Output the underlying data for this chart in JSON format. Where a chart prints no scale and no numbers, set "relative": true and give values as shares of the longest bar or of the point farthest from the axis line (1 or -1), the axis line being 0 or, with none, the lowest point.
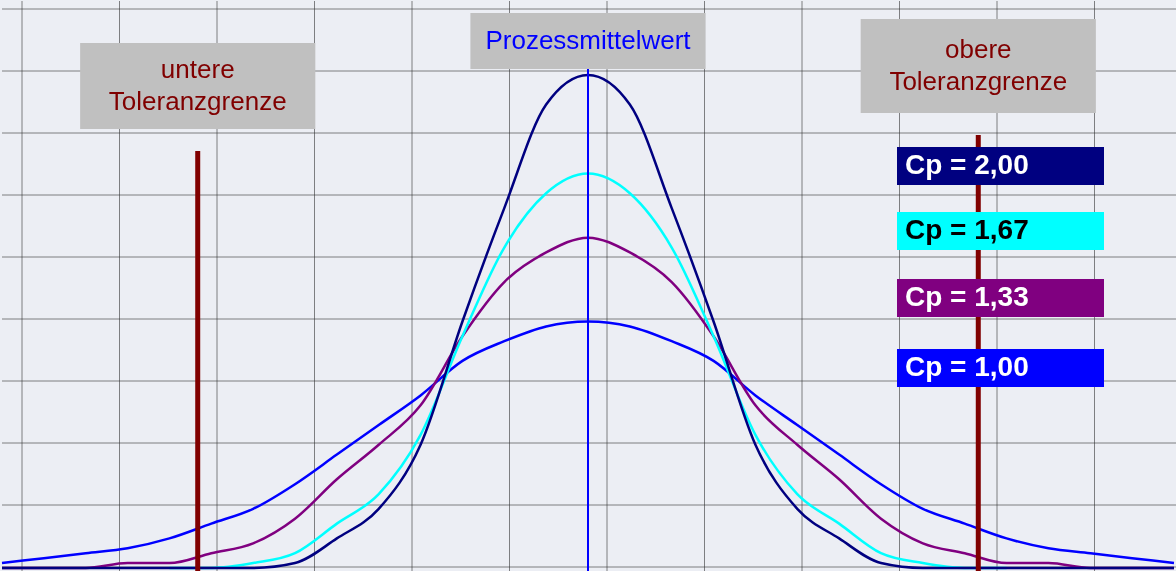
{
  "chart_data": {
    "type": "line",
    "relative": true,
    "line_style": "solid",
    "grid": true,
    "categories": [
      null,
      null,
      null,
      null,
      null,
      null,
      null,
      null,
      null,
      null,
      null,
      null,
      null,
      null,
      null,
      null,
      null,
      null,
      null,
      null,
      null,
      null,
      null,
      null,
      null,
      null,
      null,
      null,
      null
    ],
    "series": [
      {
        "name": "Cp = 1,00",
        "color": "#0000ff",
        "values": [
          0.01,
          0.02,
          0.03,
          0.04,
          0.06,
          0.09,
          0.12,
          0.17,
          0.23,
          0.29,
          0.35,
          0.42,
          0.46,
          0.49,
          0.5,
          0.49,
          0.46,
          0.42,
          0.35,
          0.29,
          0.23,
          0.17,
          0.12,
          0.09,
          0.06,
          0.04,
          0.03,
          0.02,
          0.01
        ]
      },
      {
        "name": "Cp = 1,33",
        "color": "#800080",
        "values": [
          0,
          0,
          0,
          0.01,
          0.01,
          0.03,
          0.05,
          0.1,
          0.18,
          0.25,
          0.33,
          0.47,
          0.58,
          0.64,
          0.67,
          0.64,
          0.58,
          0.47,
          0.33,
          0.25,
          0.18,
          0.1,
          0.05,
          0.03,
          0.01,
          0.01,
          0,
          0,
          0
        ]
      },
      {
        "name": "Cp = 1,67",
        "color": "#00ffff",
        "values": [
          null,
          null,
          null,
          null,
          0,
          0,
          0.01,
          0.03,
          0.09,
          0.15,
          0.27,
          0.47,
          0.65,
          0.76,
          0.8,
          0.76,
          0.65,
          0.47,
          0.27,
          0.15,
          0.09,
          0.03,
          0.01,
          0,
          0,
          null,
          null,
          null,
          null
        ]
      },
      {
        "name": "Cp = 2,00",
        "color": "#000080",
        "values": [
          0,
          0,
          0,
          0,
          0,
          0,
          0,
          0.01,
          0.06,
          0.12,
          0.25,
          0.5,
          0.73,
          0.94,
          1,
          0.94,
          0.73,
          0.5,
          0.25,
          0.12,
          0.06,
          0.01,
          0,
          0,
          0,
          0,
          0,
          0,
          0
        ]
      }
    ],
    "annotations": [
      "untere Toleranzgrenze",
      "Prozessmittelwert",
      "obere Toleranzgrenze"
    ]
  }
}
